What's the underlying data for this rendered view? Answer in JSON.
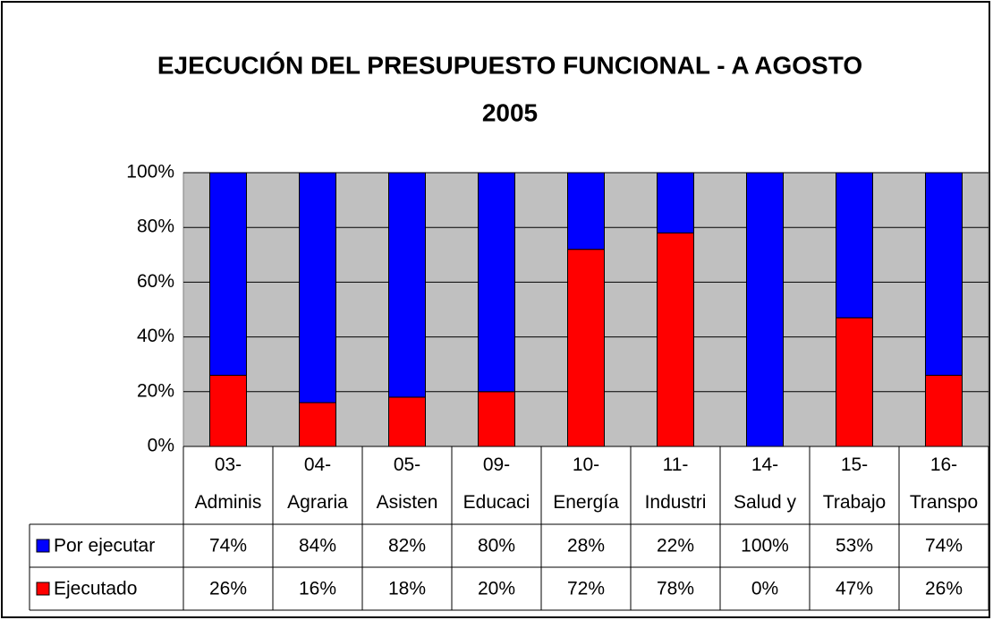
{
  "chart_data": {
    "type": "stacked_bar",
    "title": "EJECUCIÓN DEL PRESUPUESTO FUNCIONAL - A AGOSTO",
    "subtitle": "2005",
    "categories": [
      "03-\nAdminis",
      "04-\nAgraria",
      "05-\nAsisten",
      "09-\nEducaci",
      "10-\nEnergía",
      "11-\nIndustri",
      "14-\nSalud y",
      "15-\nTrabajo",
      "16-\nTranspo"
    ],
    "series": [
      {
        "name": "Por ejecutar",
        "color": "#0000ff",
        "values": [
          74,
          84,
          82,
          80,
          28,
          22,
          100,
          53,
          74
        ],
        "value_labels": [
          "74%",
          "84%",
          "82%",
          "80%",
          "28%",
          "22%",
          "100%",
          "53%",
          "74%"
        ]
      },
      {
        "name": "Ejecutado",
        "color": "#ff0000",
        "values": [
          26,
          16,
          18,
          20,
          72,
          78,
          0,
          47,
          26
        ],
        "value_labels": [
          "26%",
          "16%",
          "18%",
          "20%",
          "72%",
          "78%",
          "0%",
          "47%",
          "26%"
        ]
      }
    ],
    "ylim": [
      0,
      100
    ],
    "yticks": [
      {
        "value": 0,
        "label": "0%"
      },
      {
        "value": 20,
        "label": "20%"
      },
      {
        "value": 40,
        "label": "40%"
      },
      {
        "value": 60,
        "label": "60%"
      },
      {
        "value": 80,
        "label": "80%"
      },
      {
        "value": 100,
        "label": "100%"
      }
    ],
    "grid": true
  }
}
